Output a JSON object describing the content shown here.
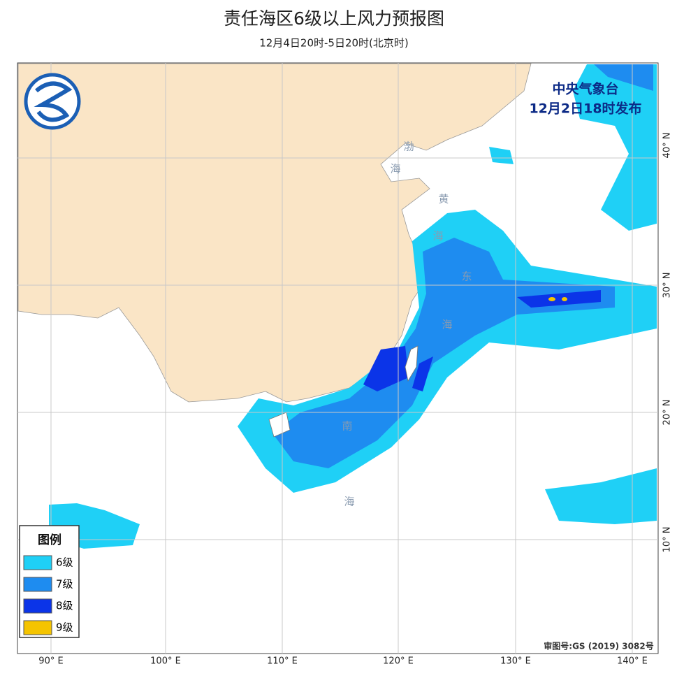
{
  "header": {
    "title": "责任海区6级以上风力预报图",
    "subtitle": "12月4日20时-5日20时(北京时)"
  },
  "issuer": {
    "agency": "中央气象台",
    "issued": "12月2日18时发布"
  },
  "sea_labels": [
    "渤",
    "海",
    "黄",
    "海",
    "东",
    "海",
    "南",
    "海"
  ],
  "legend": {
    "title": "图例",
    "items": [
      {
        "label": "6级",
        "color": "#1fd0f6"
      },
      {
        "label": "7级",
        "color": "#1e8cf0"
      },
      {
        "label": "8级",
        "color": "#0b34e8"
      },
      {
        "label": "9级",
        "color": "#f5c400"
      }
    ]
  },
  "lon_labels": [
    "90° E",
    "100° E",
    "110° E",
    "120° E",
    "130° E",
    "140° E"
  ],
  "lat_labels": [
    "40° N",
    "30° N",
    "20° N",
    "10° N"
  ],
  "approval": "审图号:GS (2019) 3082号"
}
